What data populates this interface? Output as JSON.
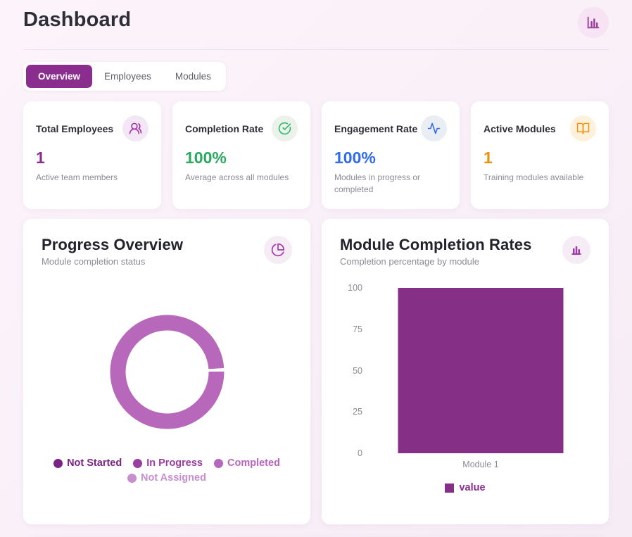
{
  "page": {
    "title": "Dashboard"
  },
  "colors": {
    "brand": "#8b2d8f",
    "donut": "#b768ba",
    "bar": "#862f86",
    "header_icon_bg": "#f7e3f3",
    "header_icon": "#9c3a9c",
    "chart_icon_bg": "#f5ecf6",
    "chart_icon": "#a23aaa"
  },
  "tabs": [
    {
      "label": "Overview",
      "active": true
    },
    {
      "label": "Employees",
      "active": false
    },
    {
      "label": "Modules",
      "active": false
    }
  ],
  "stats": [
    {
      "title": "Total Employees",
      "icon": "users-icon",
      "value": "1",
      "subtitle": "Active team members",
      "accent": "#8b2d8f",
      "icon_color": "#a030a8",
      "icon_bg": "#f3e7f5"
    },
    {
      "title": "Completion Rate",
      "icon": "check-circle-icon",
      "value": "100%",
      "subtitle": "Average across all modules",
      "accent": "#28a960",
      "icon_color": "#2eb865",
      "icon_bg": "#ebf2ec"
    },
    {
      "title": "Engagement Rate",
      "icon": "activity-icon",
      "value": "100%",
      "subtitle": "Modules in progress or completed",
      "accent": "#2f6bea",
      "icon_color": "#2f6bea",
      "icon_bg": "#e9eef5"
    },
    {
      "title": "Active Modules",
      "icon": "book-open-icon",
      "value": "1",
      "subtitle": "Training modules available",
      "accent": "#e8920e",
      "icon_color": "#ef9412",
      "icon_bg": "#fdf1dc"
    }
  ],
  "progress_overview": {
    "title": "Progress Overview",
    "subtitle": "Module completion status",
    "legend": [
      {
        "label": "Not Started",
        "color": "#7b2383"
      },
      {
        "label": "In Progress",
        "color": "#9a3da1"
      },
      {
        "label": "Completed",
        "color": "#b666be"
      },
      {
        "label": "Not Assigned",
        "color": "#c78ed0"
      }
    ]
  },
  "module_completion": {
    "title": "Module Completion Rates",
    "subtitle": "Completion percentage by module",
    "y_ticks": [
      "100",
      "75",
      "50",
      "25",
      "0"
    ],
    "category": "Module 1",
    "legend_label": "value"
  },
  "chart_data": [
    {
      "type": "pie",
      "donut": true,
      "title": "Progress Overview",
      "labels": [
        "Not Started",
        "In Progress",
        "Completed",
        "Not Assigned"
      ],
      "values": [
        0,
        0,
        100,
        0
      ],
      "unit": "percent",
      "colors": [
        "#7b2383",
        "#9a3da1",
        "#b768ba",
        "#c78ed0"
      ],
      "legend_position": "bottom"
    },
    {
      "type": "bar",
      "title": "Module Completion Rates",
      "categories": [
        "Module 1"
      ],
      "series": [
        {
          "name": "value",
          "values": [
            100
          ]
        }
      ],
      "xlabel": "",
      "ylabel": "",
      "ylim": [
        0,
        100
      ],
      "yticks": [
        0,
        25,
        50,
        75,
        100
      ],
      "grid": false,
      "legend_position": "bottom"
    }
  ]
}
